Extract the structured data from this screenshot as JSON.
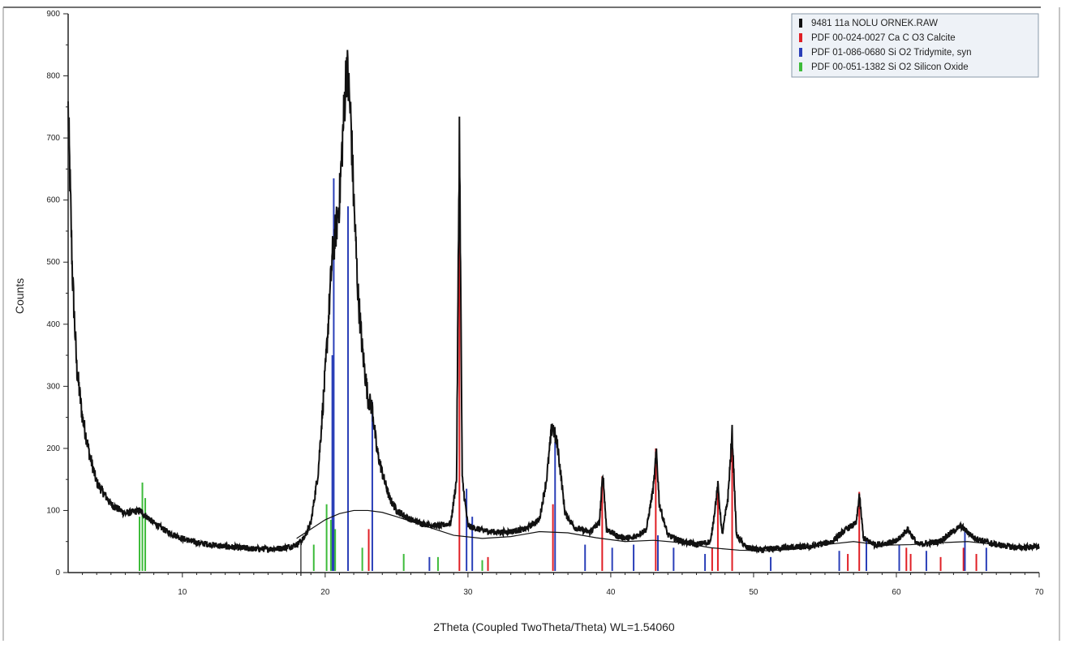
{
  "chart_data": {
    "type": "line",
    "xlabel": "2Theta (Coupled TwoTheta/Theta) WL=1.54060",
    "ylabel": "Counts",
    "xlim": [
      2,
      70
    ],
    "ylim": [
      0,
      900
    ],
    "x_ticks": [
      10,
      20,
      30,
      40,
      50,
      60,
      70
    ],
    "y_ticks": [
      0,
      100,
      200,
      300,
      400,
      500,
      600,
      700,
      800,
      900
    ],
    "grid": false,
    "legend_position": "top-right",
    "legend": [
      {
        "label": "9481 11a  NOLU ORNEK.RAW",
        "color": "#111111"
      },
      {
        "label": "PDF 00-024-0027 Ca C O3 Calcite",
        "color": "#e01f25"
      },
      {
        "label": "PDF 01-086-0680 Si O2 Tridymite, syn",
        "color": "#2a3fb8"
      },
      {
        "label": "PDF 00-051-1382 Si O2 Silicon Oxide",
        "color": "#3dbb3a"
      }
    ],
    "measured_pattern": {
      "name": "9481 11a  NOLU ORNEK.RAW",
      "x": [
        2.0,
        2.3,
        2.6,
        3.0,
        3.5,
        4.0,
        5.0,
        6.0,
        7.0,
        8.0,
        9.0,
        10.0,
        11.0,
        12.0,
        13.0,
        14.0,
        15.0,
        16.0,
        17.0,
        18.0,
        18.5,
        19.0,
        19.5,
        20.0,
        20.5,
        20.8,
        21.0,
        21.2,
        21.5,
        21.8,
        22.0,
        22.3,
        22.6,
        23.0,
        23.3,
        23.6,
        24.0,
        24.5,
        25.0,
        26.0,
        27.0,
        28.0,
        28.8,
        29.2,
        29.4,
        29.6,
        30.0,
        31.0,
        32.0,
        33.0,
        34.0,
        35.0,
        35.5,
        35.9,
        36.3,
        36.8,
        37.5,
        38.5,
        39.2,
        39.45,
        39.7,
        40.5,
        41.5,
        42.5,
        43.0,
        43.2,
        43.4,
        44.0,
        45.0,
        46.0,
        47.0,
        47.5,
        47.8,
        48.2,
        48.5,
        48.8,
        49.5,
        50.5,
        52.0,
        54.0,
        55.5,
        56.5,
        57.2,
        57.4,
        57.7,
        58.5,
        60.0,
        60.8,
        61.5,
        63.0,
        64.5,
        65.5,
        67.0,
        68.5,
        70.0
      ],
      "y": [
        745,
        480,
        330,
        250,
        190,
        145,
        110,
        95,
        100,
        80,
        65,
        55,
        48,
        45,
        42,
        40,
        38,
        38,
        39,
        45,
        55,
        80,
        160,
        320,
        510,
        560,
        600,
        690,
        820,
        730,
        600,
        450,
        360,
        280,
        265,
        200,
        160,
        120,
        100,
        85,
        78,
        75,
        80,
        150,
        715,
        150,
        75,
        68,
        65,
        66,
        70,
        85,
        150,
        240,
        200,
        95,
        72,
        65,
        80,
        160,
        70,
        58,
        55,
        70,
        140,
        195,
        110,
        60,
        50,
        45,
        50,
        140,
        60,
        120,
        225,
        60,
        40,
        36,
        40,
        42,
        50,
        70,
        80,
        125,
        55,
        45,
        50,
        70,
        45,
        50,
        75,
        55,
        45,
        40,
        42
      ]
    },
    "background": {
      "x": [
        18,
        19,
        20,
        21,
        22,
        23,
        24,
        25,
        27,
        29,
        31,
        33,
        35,
        37,
        39,
        41,
        43,
        45,
        47,
        49,
        51,
        53,
        55,
        57,
        59,
        61,
        63,
        65,
        67,
        70
      ],
      "y": [
        55,
        70,
        85,
        95,
        100,
        100,
        97,
        90,
        75,
        60,
        55,
        58,
        66,
        64,
        56,
        50,
        52,
        48,
        40,
        36,
        35,
        38,
        45,
        50,
        44,
        45,
        48,
        50,
        45,
        40
      ]
    },
    "reference_series": [
      {
        "name": "PDF 00-024-0027 Ca C O3 Calcite",
        "color": "#e01f25",
        "x": [
          23.05,
          29.4,
          31.4,
          35.95,
          39.4,
          43.15,
          47.1,
          47.5,
          48.5,
          56.6,
          57.4,
          60.7,
          61.0,
          63.1,
          64.7,
          65.6
        ],
        "y": [
          70,
          605,
          25,
          110,
          155,
          200,
          40,
          130,
          225,
          30,
          130,
          40,
          30,
          25,
          40,
          30
        ]
      },
      {
        "name": "PDF 01-086-0680 Si O2 Tridymite, syn",
        "color": "#2a3fb8",
        "x": [
          20.5,
          20.6,
          21.6,
          23.3,
          27.3,
          29.9,
          30.3,
          36.1,
          38.2,
          40.1,
          41.6,
          43.3,
          44.4,
          46.6,
          51.2,
          56.0,
          57.9,
          60.2,
          62.1,
          64.8,
          66.3
        ],
        "y": [
          350,
          635,
          590,
          275,
          25,
          135,
          90,
          210,
          45,
          40,
          45,
          60,
          40,
          30,
          25,
          35,
          55,
          45,
          35,
          70,
          40
        ]
      },
      {
        "name": "PDF 00-051-1382 Si O2 Silicon Oxide",
        "color": "#3dbb3a",
        "x": [
          7.0,
          7.2,
          7.4,
          19.2,
          20.1,
          20.4,
          20.7,
          22.6,
          25.5,
          27.9,
          31.0
        ],
        "y": [
          90,
          145,
          120,
          45,
          110,
          85,
          70,
          40,
          30,
          25,
          20
        ]
      }
    ]
  }
}
